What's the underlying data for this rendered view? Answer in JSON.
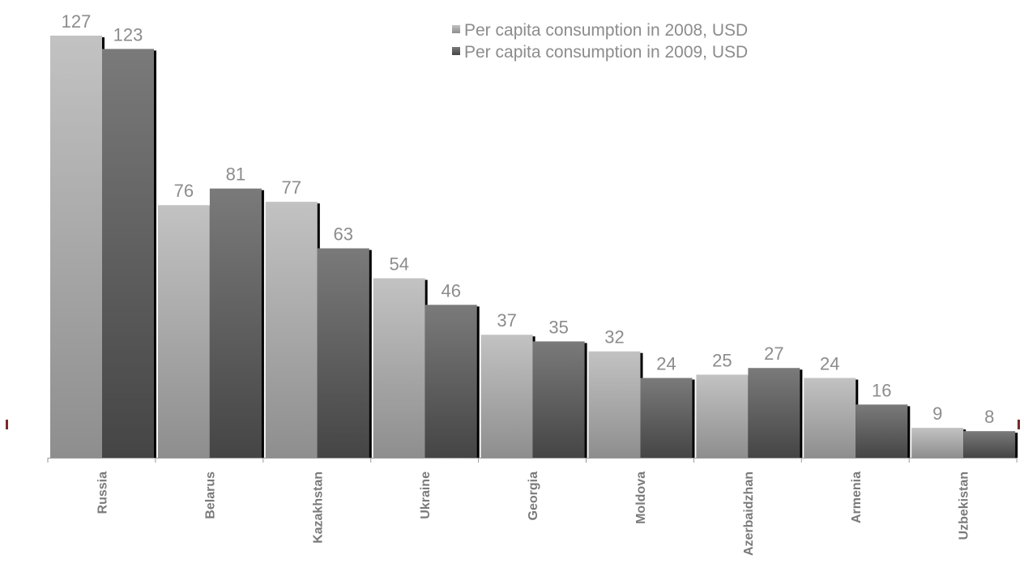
{
  "chart_data": {
    "type": "bar",
    "title": "",
    "xlabel": "",
    "ylabel": "",
    "ylim": [
      0,
      127
    ],
    "grid": false,
    "legend_position": "top-right",
    "categories": [
      "Russia",
      "Belarus",
      "Kazakhstan",
      "Ukraine",
      "Georgia",
      "Moldova",
      "Azerbaidzhan",
      "Armenia",
      "Uzbekistan"
    ],
    "series": [
      {
        "name": "Per capita consumption in 2008, USD",
        "color": "#b5b5b5",
        "values": [
          127,
          76,
          77,
          54,
          37,
          32,
          25,
          24,
          9
        ]
      },
      {
        "name": "Per capita consumption in 2009, USD",
        "color": "#6e6e6e",
        "values": [
          123,
          81,
          63,
          46,
          35,
          24,
          27,
          16,
          8
        ]
      }
    ]
  }
}
